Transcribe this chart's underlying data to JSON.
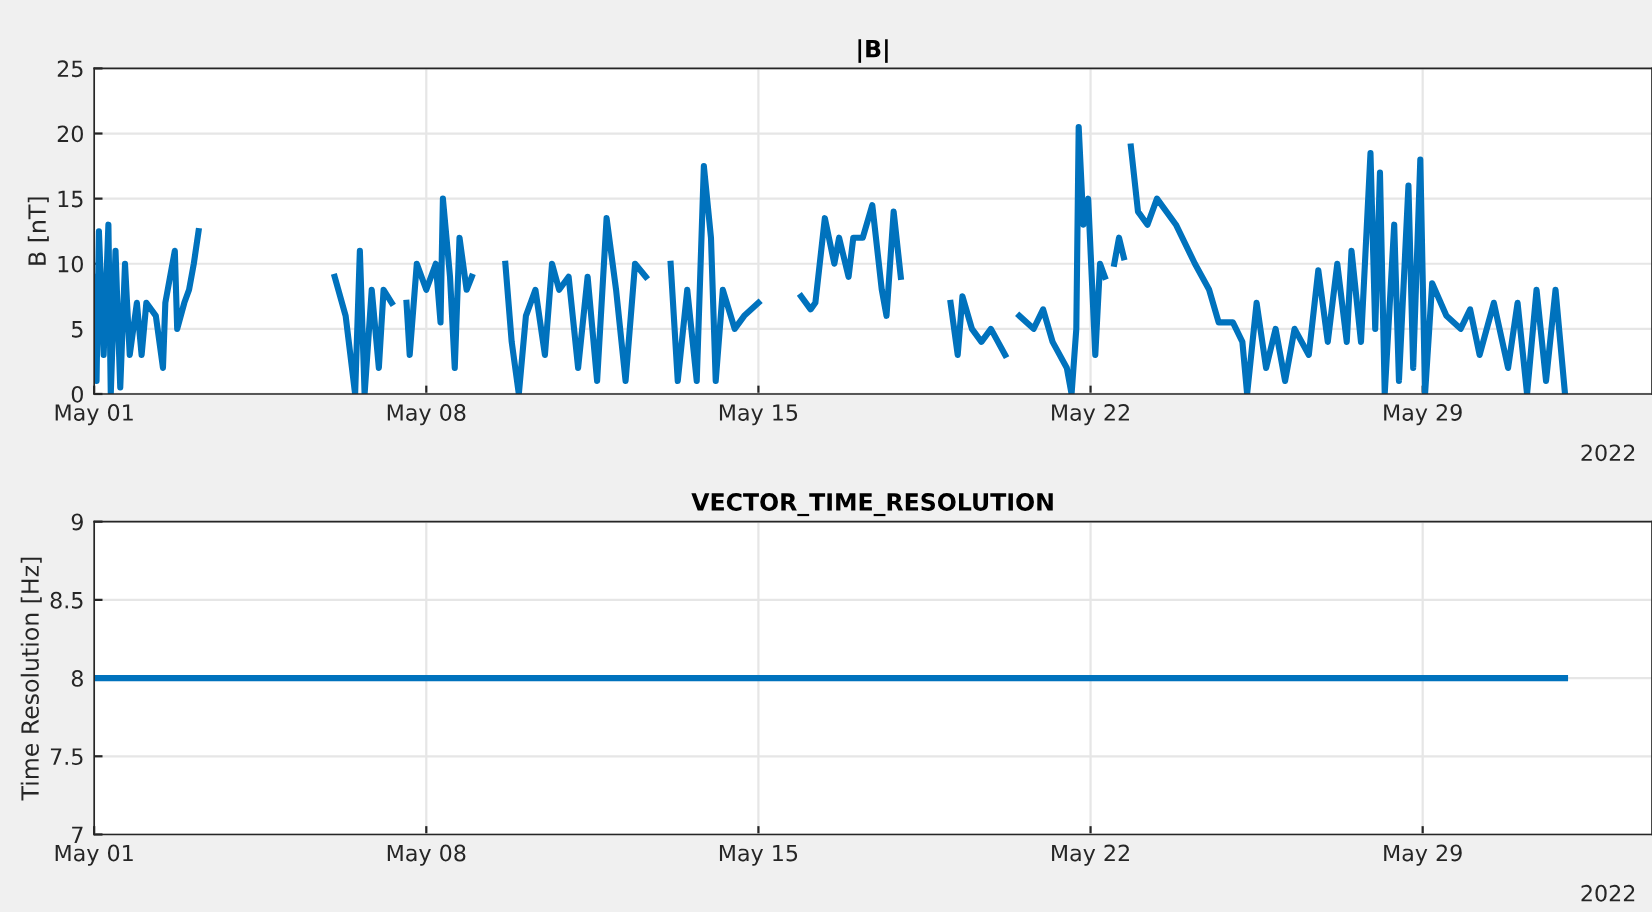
{
  "chart_data": [
    {
      "type": "line",
      "title": "|B|",
      "ylabel": "B [nT]",
      "grid": true,
      "marker": "none",
      "line_style": "solid",
      "xlim": [
        "2022-05-01T00:00",
        "2022-06-02T20:00"
      ],
      "xticks": [
        {
          "value": "2022-05-01",
          "label": "May 01"
        },
        {
          "value": "2022-05-08",
          "label": "May 08"
        },
        {
          "value": "2022-05-15",
          "label": "May 15"
        },
        {
          "value": "2022-05-22",
          "label": "May 22"
        },
        {
          "value": "2022-05-29",
          "label": "May 29"
        }
      ],
      "ylim": [
        0,
        25
      ],
      "yticks": [
        0,
        5,
        10,
        15,
        20,
        25
      ],
      "annotations": [
        "2022"
      ],
      "series": [
        {
          "color": "#0072bd",
          "x": [
            "2022-05-01T00:00",
            "2022-05-01T01:12",
            "2022-05-01T02:24",
            "2022-05-01T04:48",
            "2022-05-01T07:12",
            "2022-05-01T08:24",
            "2022-05-01T10:48",
            "2022-05-01T13:12",
            "2022-05-01T15:36",
            "2022-05-01T18:00",
            "2022-05-01T21:36",
            "2022-05-02T00:00",
            "2022-05-02T02:24",
            "2022-05-02T07:12",
            "2022-05-02T10:48",
            "2022-05-02T12:00",
            "2022-05-02T16:48",
            "2022-05-02T18:00",
            "2022-05-02T21:36",
            "2022-05-03T00:00",
            "2022-05-03T02:24",
            "2022-05-03T04:48",
            "2022-05-03T12:00",
            "2022-05-06T01:40",
            "2022-05-06T07:12",
            "2022-05-06T12:00",
            "2022-05-06T14:24",
            "2022-05-06T16:48",
            "2022-05-06T20:24",
            "2022-05-07T00:00",
            "2022-05-07T02:24",
            "2022-05-07T06:30",
            "2022-05-07T10:00",
            "2022-05-07T14:00",
            "2022-05-07T15:36",
            "2022-05-07T19:12",
            "2022-05-08T00:00",
            "2022-05-08T04:48",
            "2022-05-08T07:12",
            "2022-05-08T08:24",
            "2022-05-08T12:00",
            "2022-05-08T14:24",
            "2022-05-08T16:48",
            "2022-05-08T20:24",
            "2022-05-08T23:00",
            "2022-05-09T06:00",
            "2022-05-09T16:00",
            "2022-05-09T19:12",
            "2022-05-09T22:48",
            "2022-05-10T02:24",
            "2022-05-10T07:12",
            "2022-05-10T12:00",
            "2022-05-10T15:36",
            "2022-05-10T19:12",
            "2022-05-11T00:00",
            "2022-05-11T04:48",
            "2022-05-11T09:36",
            "2022-05-11T14:24",
            "2022-05-11T19:12",
            "2022-05-12T00:00",
            "2022-05-12T04:48",
            "2022-05-12T09:36",
            "2022-05-12T15:00",
            "2022-05-12T20:00",
            "2022-05-13T03:36",
            "2022-05-13T07:12",
            "2022-05-13T12:00",
            "2022-05-13T16:48",
            "2022-05-13T20:24",
            "2022-05-14T00:00",
            "2022-05-14T02:24",
            "2022-05-14T06:00",
            "2022-05-14T12:00",
            "2022-05-14T16:48",
            "2022-05-15T00:00",
            "2022-05-15T10:00",
            "2022-05-15T21:36",
            "2022-05-16T02:24",
            "2022-05-16T04:48",
            "2022-05-16T09:36",
            "2022-05-16T14:24",
            "2022-05-16T16:48",
            "2022-05-16T21:36",
            "2022-05-17T00:00",
            "2022-05-17T04:48",
            "2022-05-17T09:36",
            "2022-05-17T14:24",
            "2022-05-17T16:48",
            "2022-05-17T20:24",
            "2022-05-18T00:00",
            "2022-05-18T12:00",
            "2022-05-19T01:12",
            "2022-05-19T04:48",
            "2022-05-19T07:12",
            "2022-05-19T12:00",
            "2022-05-19T16:48",
            "2022-05-19T21:36",
            "2022-05-20T04:48",
            "2022-05-20T08:00",
            "2022-05-20T12:00",
            "2022-05-20T19:12",
            "2022-05-21T00:00",
            "2022-05-21T04:48",
            "2022-05-21T12:00",
            "2022-05-21T14:24",
            "2022-05-21T16:48",
            "2022-05-21T18:00",
            "2022-05-21T20:24",
            "2022-05-21T22:48",
            "2022-05-22T02:24",
            "2022-05-22T04:48",
            "2022-05-22T07:12",
            "2022-05-22T09:36",
            "2022-05-22T12:00",
            "2022-05-22T14:24",
            "2022-05-22T16:48",
            "2022-05-22T18:00",
            "2022-05-22T20:24",
            "2022-05-23T00:00",
            "2022-05-23T04:48",
            "2022-05-23T09:36",
            "2022-05-23T19:12",
            "2022-05-24T04:48",
            "2022-05-24T12:00",
            "2022-05-24T16:48",
            "2022-05-25T00:00",
            "2022-05-25T04:48",
            "2022-05-25T07:12",
            "2022-05-25T12:00",
            "2022-05-25T16:48",
            "2022-05-25T21:36",
            "2022-05-26T02:24",
            "2022-05-26T07:12",
            "2022-05-26T14:24",
            "2022-05-26T19:12",
            "2022-05-27T00:00",
            "2022-05-27T04:48",
            "2022-05-27T09:36",
            "2022-05-27T12:00",
            "2022-05-27T16:48",
            "2022-05-27T21:36",
            "2022-05-28T00:00",
            "2022-05-28T02:24",
            "2022-05-28T04:48",
            "2022-05-28T09:36",
            "2022-05-28T12:00",
            "2022-05-28T16:48",
            "2022-05-28T19:12",
            "2022-05-28T22:48",
            "2022-05-29T01:12",
            "2022-05-29T04:48",
            "2022-05-29T12:00",
            "2022-05-29T19:12",
            "2022-05-30T00:00",
            "2022-05-30T04:48",
            "2022-05-30T12:00",
            "2022-05-30T19:12",
            "2022-05-31T00:00",
            "2022-05-31T04:48",
            "2022-05-31T09:36",
            "2022-05-31T14:24",
            "2022-05-31T19:12",
            "2022-06-01T00:00"
          ],
          "values": [
            9,
            1,
            12.5,
            3,
            13,
            0,
            11,
            0.5,
            10,
            3,
            7,
            3,
            7,
            6,
            2,
            7,
            11,
            5,
            7,
            8,
            10,
            12.5,
            null,
            9,
            6,
            0,
            11,
            0,
            8,
            2,
            8,
            7,
            null,
            7,
            3,
            10,
            8,
            10,
            5.5,
            15,
            9,
            2,
            12,
            8,
            9,
            null,
            10,
            4,
            0,
            6,
            8,
            3,
            10,
            8,
            9,
            2,
            9,
            1,
            13.5,
            8,
            1,
            10,
            9,
            null,
            10,
            1,
            8,
            1,
            17.5,
            12,
            1,
            8,
            5,
            6,
            7,
            null,
            7.5,
            6.5,
            7,
            13.5,
            10,
            12,
            9,
            12,
            12,
            14.5,
            8,
            6,
            14,
            9,
            null,
            7,
            3,
            7.5,
            5,
            4,
            5,
            3,
            null,
            6,
            5,
            6.5,
            4,
            2,
            0,
            5,
            20.5,
            13,
            15,
            3,
            10,
            9,
            null,
            10,
            12,
            10.5,
            null,
            19,
            14,
            13,
            15,
            13,
            10,
            8,
            5.5,
            5.5,
            4,
            0,
            7,
            2,
            5,
            1,
            5,
            3,
            9.5,
            4,
            10,
            4,
            11,
            4,
            18.5,
            5,
            17,
            0,
            13,
            1,
            16,
            2,
            18,
            0,
            8.5,
            6,
            5,
            6.5,
            3,
            7,
            2,
            7,
            0,
            8,
            1,
            8,
            0
          ]
        }
      ]
    },
    {
      "type": "line",
      "title": "VECTOR_TIME_RESOLUTION",
      "ylabel": "Time Resolution [Hz]",
      "grid": true,
      "marker": "none",
      "line_style": "solid",
      "xlim": [
        "2022-05-01T00:00",
        "2022-06-02T20:00"
      ],
      "xticks": [
        {
          "value": "2022-05-01",
          "label": "May 01"
        },
        {
          "value": "2022-05-08",
          "label": "May 08"
        },
        {
          "value": "2022-05-15",
          "label": "May 15"
        },
        {
          "value": "2022-05-22",
          "label": "May 22"
        },
        {
          "value": "2022-05-29",
          "label": "May 29"
        }
      ],
      "ylim": [
        7,
        9
      ],
      "yticks": [
        7,
        7.5,
        8,
        8.5,
        9
      ],
      "annotations": [
        "2022"
      ],
      "series": [
        {
          "color": "#0072bd",
          "x": [
            "2022-05-01T00:00",
            "2022-06-01T00:00"
          ],
          "values": [
            8,
            8
          ]
        }
      ]
    }
  ]
}
